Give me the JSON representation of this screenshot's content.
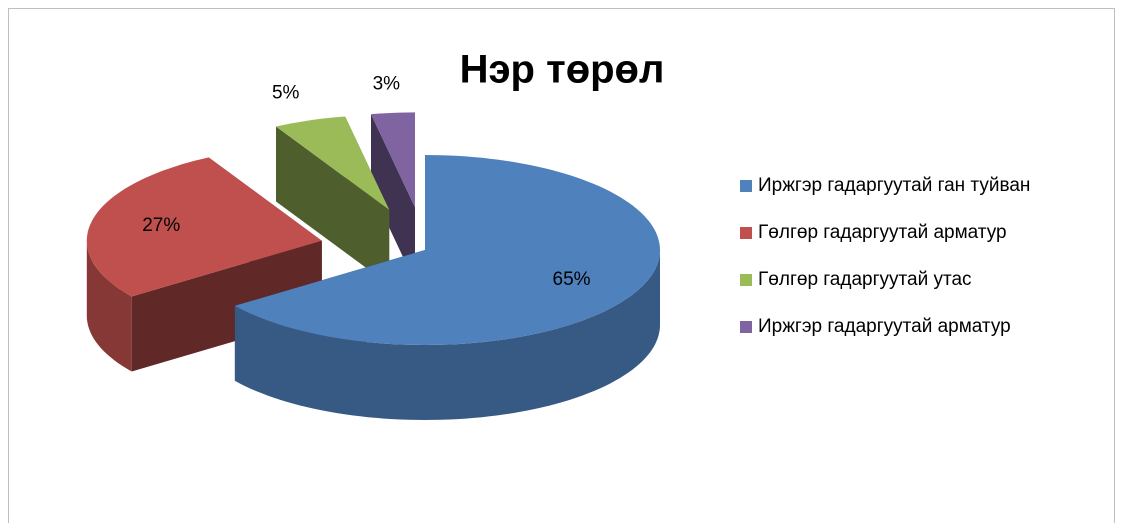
{
  "chart_data": {
    "type": "pie",
    "title": "Нэр төрөл",
    "categories": [
      "Иржгэр гадаргуутай ган туйван",
      "Гөлгөр гадаргуутай арматур",
      "Гөлгөр гадаргуутай утас",
      "Иржгэр гадаргуутай арматур"
    ],
    "values": [
      65,
      27,
      5,
      3
    ],
    "value_labels": [
      "65%",
      "27%",
      "5%",
      "3%"
    ],
    "colors": [
      "#4f81bd",
      "#c0504d",
      "#9bbb59",
      "#8064a2"
    ],
    "legend": "right"
  }
}
